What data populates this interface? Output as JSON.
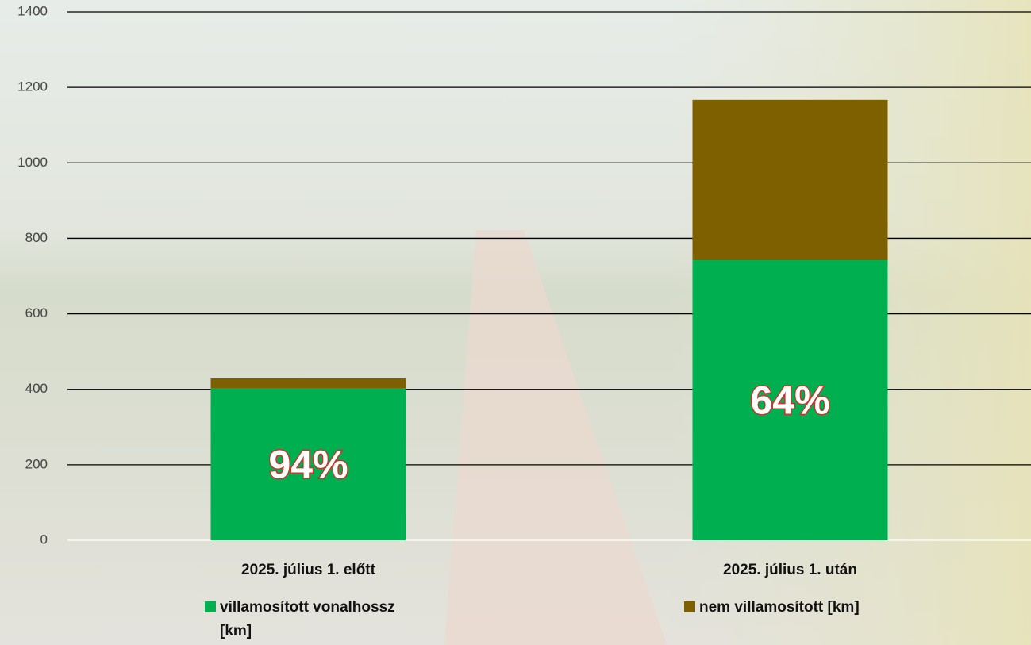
{
  "chart_data": {
    "type": "stacked-bar",
    "categories": [
      "2025. július 1. előtt",
      "2025. július 1. után"
    ],
    "series": [
      {
        "name": "villamosított vonalhossz [km]",
        "color": "#00b050",
        "values": [
          402,
          742
        ]
      },
      {
        "name": "nem villamosított [km]",
        "color": "#7f6000",
        "values": [
          27,
          425
        ]
      }
    ],
    "annotations": [
      "94%",
      "64%"
    ],
    "ylim": [
      0,
      1400
    ],
    "yticks": [
      0,
      200,
      400,
      600,
      800,
      1000,
      1200,
      1400
    ],
    "grid": true
  }
}
